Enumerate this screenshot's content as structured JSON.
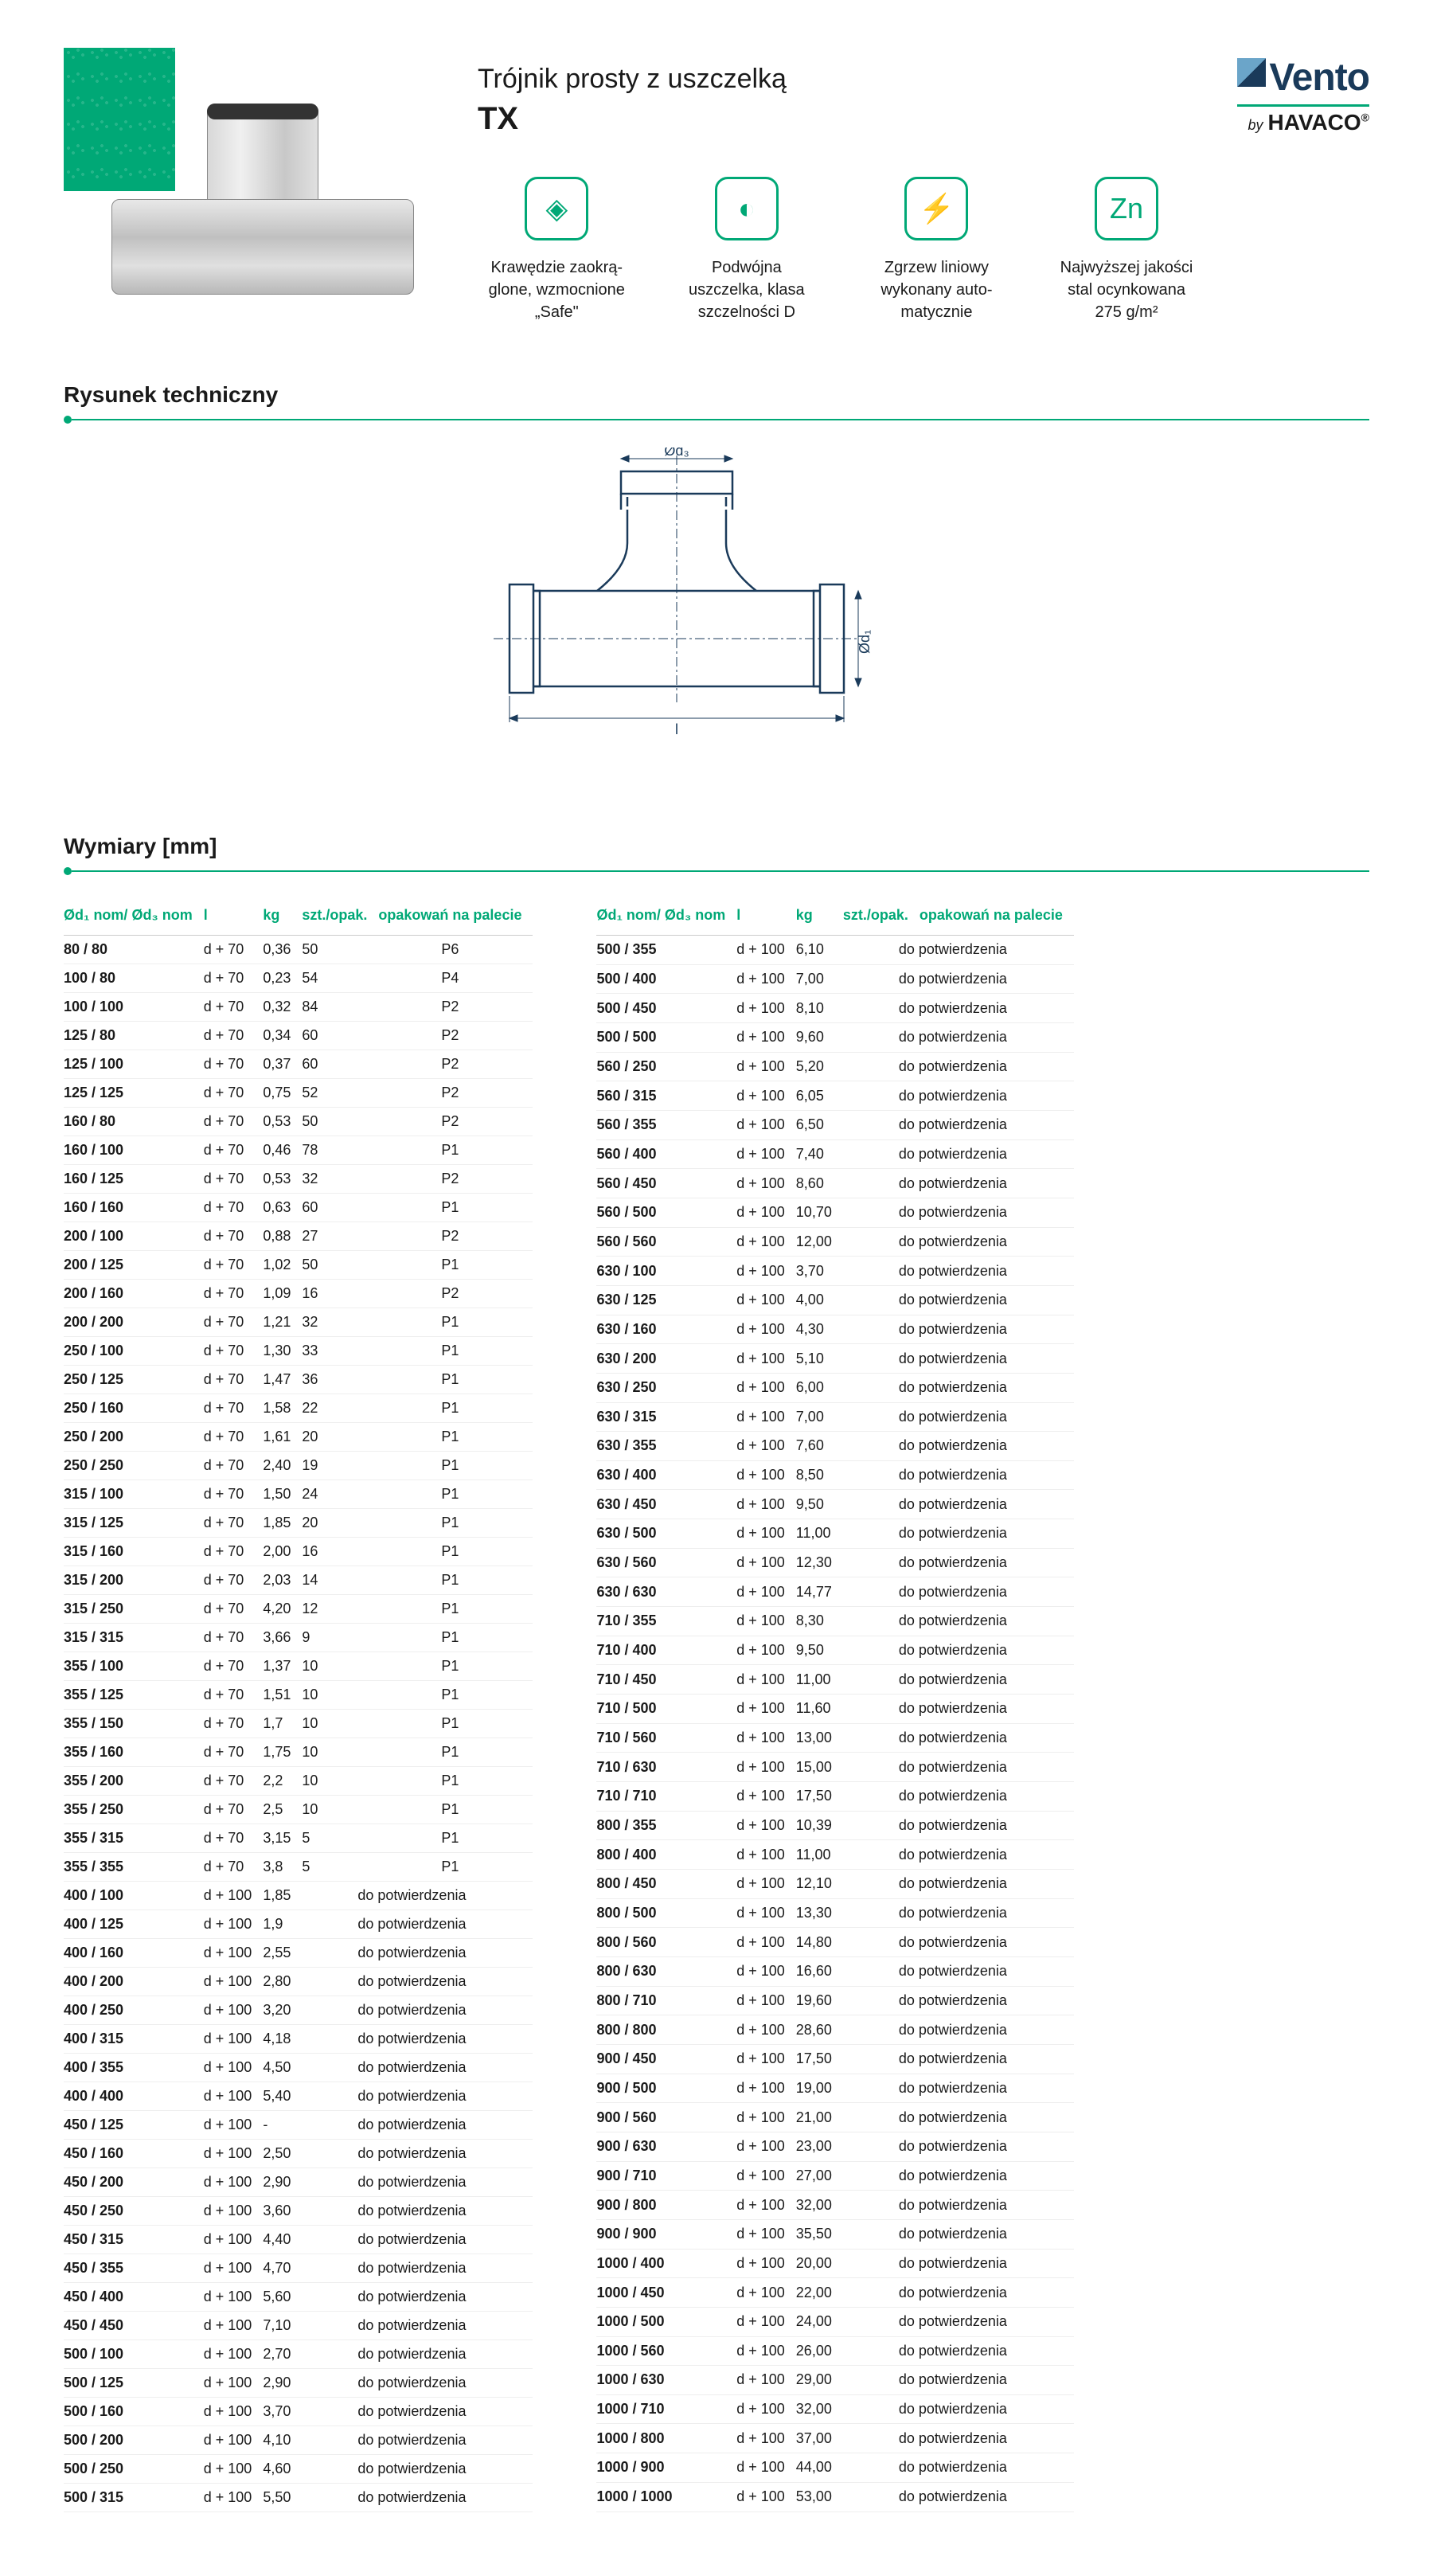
{
  "header": {
    "subtitle": "Trójnik prosty z uszczelką",
    "code": "TX",
    "logo_vento": "Vento",
    "logo_by": "by",
    "logo_havaco": "HAVACO"
  },
  "features": [
    {
      "icon": "◈",
      "text": "Krawędzie zaokrą-\nglone, wzmocnione\n„Safe\""
    },
    {
      "icon": "◐",
      "text": "Podwójna\nuszczelka, klasa\nszczelności D"
    },
    {
      "icon": "⚡",
      "text": "Zgrzew liniowy\nwykonany auto-\nmatycznie"
    },
    {
      "icon": "Zn",
      "text": "Najwyższej jakości\nstal ocynkowana\n275 g/m²"
    }
  ],
  "section1_title": "Rysunek techniczny",
  "section2_title": "Wymiary [mm]",
  "drawing": {
    "d3_label": "Ød₃",
    "d1_label": "Ød₁",
    "l_label": "l"
  },
  "table_headers": [
    "Ød₁ nom/ Ød₃ nom",
    "l",
    "kg",
    "szt./opak.",
    "opakowań na palecie"
  ],
  "confirm_text": "do potwierdzenia",
  "left_rows": [
    [
      "80 / 80",
      "d + 70",
      "0,36",
      "50",
      "P6"
    ],
    [
      "100 / 80",
      "d + 70",
      "0,23",
      "54",
      "P4"
    ],
    [
      "100 / 100",
      "d + 70",
      "0,32",
      "84",
      "P2"
    ],
    [
      "125 / 80",
      "d + 70",
      "0,34",
      "60",
      "P2"
    ],
    [
      "125 / 100",
      "d + 70",
      "0,37",
      "60",
      "P2"
    ],
    [
      "125 / 125",
      "d + 70",
      "0,75",
      "52",
      "P2"
    ],
    [
      "160 / 80",
      "d + 70",
      "0,53",
      "50",
      "P2"
    ],
    [
      "160 / 100",
      "d + 70",
      "0,46",
      "78",
      "P1"
    ],
    [
      "160 / 125",
      "d + 70",
      "0,53",
      "32",
      "P2"
    ],
    [
      "160 / 160",
      "d + 70",
      "0,63",
      "60",
      "P1"
    ],
    [
      "200 / 100",
      "d + 70",
      "0,88",
      "27",
      "P2"
    ],
    [
      "200 / 125",
      "d + 70",
      "1,02",
      "50",
      "P1"
    ],
    [
      "200 / 160",
      "d + 70",
      "1,09",
      "16",
      "P2"
    ],
    [
      "200 / 200",
      "d + 70",
      "1,21",
      "32",
      "P1"
    ],
    [
      "250 / 100",
      "d + 70",
      "1,30",
      "33",
      "P1"
    ],
    [
      "250 / 125",
      "d + 70",
      "1,47",
      "36",
      "P1"
    ],
    [
      "250 / 160",
      "d + 70",
      "1,58",
      "22",
      "P1"
    ],
    [
      "250 / 200",
      "d + 70",
      "1,61",
      "20",
      "P1"
    ],
    [
      "250 / 250",
      "d + 70",
      "2,40",
      "19",
      "P1"
    ],
    [
      "315 / 100",
      "d + 70",
      "1,50",
      "24",
      "P1"
    ],
    [
      "315 / 125",
      "d + 70",
      "1,85",
      "20",
      "P1"
    ],
    [
      "315 / 160",
      "d + 70",
      "2,00",
      "16",
      "P1"
    ],
    [
      "315 / 200",
      "d + 70",
      "2,03",
      "14",
      "P1"
    ],
    [
      "315 / 250",
      "d + 70",
      "4,20",
      "12",
      "P1"
    ],
    [
      "315 / 315",
      "d + 70",
      "3,66",
      "9",
      "P1"
    ],
    [
      "355 / 100",
      "d + 70",
      "1,37",
      "10",
      "P1"
    ],
    [
      "355 / 125",
      "d + 70",
      "1,51",
      "10",
      "P1"
    ],
    [
      "355 / 150",
      "d + 70",
      "1,7",
      "10",
      "P1"
    ],
    [
      "355 / 160",
      "d + 70",
      "1,75",
      "10",
      "P1"
    ],
    [
      "355 / 200",
      "d + 70",
      "2,2",
      "10",
      "P1"
    ],
    [
      "355 / 250",
      "d + 70",
      "2,5",
      "10",
      "P1"
    ],
    [
      "355 / 315",
      "d + 70",
      "3,15",
      "5",
      "P1"
    ],
    [
      "355 / 355",
      "d + 70",
      "3,8",
      "5",
      "P1"
    ],
    [
      "400 / 100",
      "d + 100",
      "1,85",
      "CONFIRM",
      "CONFIRM"
    ],
    [
      "400 / 125",
      "d + 100",
      "1,9",
      "CONFIRM",
      "CONFIRM"
    ],
    [
      "400 / 160",
      "d + 100",
      "2,55",
      "CONFIRM",
      "CONFIRM"
    ],
    [
      "400 / 200",
      "d + 100",
      "2,80",
      "CONFIRM",
      "CONFIRM"
    ],
    [
      "400 / 250",
      "d + 100",
      "3,20",
      "CONFIRM",
      "CONFIRM"
    ],
    [
      "400 / 315",
      "d + 100",
      "4,18",
      "CONFIRM",
      "CONFIRM"
    ],
    [
      "400 / 355",
      "d + 100",
      "4,50",
      "CONFIRM",
      "CONFIRM"
    ],
    [
      "400 / 400",
      "d + 100",
      "5,40",
      "CONFIRM",
      "CONFIRM"
    ],
    [
      "450 / 125",
      "d + 100",
      "-",
      "CONFIRM",
      "CONFIRM"
    ],
    [
      "450 / 160",
      "d + 100",
      "2,50",
      "CONFIRM",
      "CONFIRM"
    ],
    [
      "450 / 200",
      "d + 100",
      "2,90",
      "CONFIRM",
      "CONFIRM"
    ],
    [
      "450 / 250",
      "d + 100",
      "3,60",
      "CONFIRM",
      "CONFIRM"
    ],
    [
      "450 / 315",
      "d + 100",
      "4,40",
      "CONFIRM",
      "CONFIRM"
    ],
    [
      "450 / 355",
      "d + 100",
      "4,70",
      "CONFIRM",
      "CONFIRM"
    ],
    [
      "450 / 400",
      "d + 100",
      "5,60",
      "CONFIRM",
      "CONFIRM"
    ],
    [
      "450 / 450",
      "d + 100",
      "7,10",
      "CONFIRM",
      "CONFIRM"
    ],
    [
      "500 / 100",
      "d + 100",
      "2,70",
      "CONFIRM",
      "CONFIRM"
    ],
    [
      "500 / 125",
      "d + 100",
      "2,90",
      "CONFIRM",
      "CONFIRM"
    ],
    [
      "500 / 160",
      "d + 100",
      "3,70",
      "CONFIRM",
      "CONFIRM"
    ],
    [
      "500 / 200",
      "d + 100",
      "4,10",
      "CONFIRM",
      "CONFIRM"
    ],
    [
      "500 / 250",
      "d + 100",
      "4,60",
      "CONFIRM",
      "CONFIRM"
    ],
    [
      "500 / 315",
      "d + 100",
      "5,50",
      "CONFIRM",
      "CONFIRM"
    ]
  ],
  "right_rows": [
    [
      "500 / 355",
      "d + 100",
      "6,10",
      "CONFIRM",
      "CONFIRM"
    ],
    [
      "500 / 400",
      "d + 100",
      "7,00",
      "CONFIRM",
      "CONFIRM"
    ],
    [
      "500 / 450",
      "d + 100",
      "8,10",
      "CONFIRM",
      "CONFIRM"
    ],
    [
      "500 / 500",
      "d + 100",
      "9,60",
      "CONFIRM",
      "CONFIRM"
    ],
    [
      "560 / 250",
      "d + 100",
      "5,20",
      "CONFIRM",
      "CONFIRM"
    ],
    [
      "560 / 315",
      "d + 100",
      "6,05",
      "CONFIRM",
      "CONFIRM"
    ],
    [
      "560 / 355",
      "d + 100",
      "6,50",
      "CONFIRM",
      "CONFIRM"
    ],
    [
      "560 / 400",
      "d + 100",
      "7,40",
      "CONFIRM",
      "CONFIRM"
    ],
    [
      "560 / 450",
      "d + 100",
      "8,60",
      "CONFIRM",
      "CONFIRM"
    ],
    [
      "560 / 500",
      "d + 100",
      "10,70",
      "CONFIRM",
      "CONFIRM"
    ],
    [
      "560 / 560",
      "d + 100",
      "12,00",
      "CONFIRM",
      "CONFIRM"
    ],
    [
      "630 / 100",
      "d + 100",
      "3,70",
      "CONFIRM",
      "CONFIRM"
    ],
    [
      "630 / 125",
      "d + 100",
      "4,00",
      "CONFIRM",
      "CONFIRM"
    ],
    [
      "630 / 160",
      "d + 100",
      "4,30",
      "CONFIRM",
      "CONFIRM"
    ],
    [
      "630 / 200",
      "d + 100",
      "5,10",
      "CONFIRM",
      "CONFIRM"
    ],
    [
      "630 / 250",
      "d + 100",
      "6,00",
      "CONFIRM",
      "CONFIRM"
    ],
    [
      "630 / 315",
      "d + 100",
      "7,00",
      "CONFIRM",
      "CONFIRM"
    ],
    [
      "630 / 355",
      "d + 100",
      "7,60",
      "CONFIRM",
      "CONFIRM"
    ],
    [
      "630 / 400",
      "d + 100",
      "8,50",
      "CONFIRM",
      "CONFIRM"
    ],
    [
      "630 / 450",
      "d + 100",
      "9,50",
      "CONFIRM",
      "CONFIRM"
    ],
    [
      "630 / 500",
      "d + 100",
      "11,00",
      "CONFIRM",
      "CONFIRM"
    ],
    [
      "630 / 560",
      "d + 100",
      "12,30",
      "CONFIRM",
      "CONFIRM"
    ],
    [
      "630 / 630",
      "d + 100",
      "14,77",
      "CONFIRM",
      "CONFIRM"
    ],
    [
      "710 / 355",
      "d + 100",
      "8,30",
      "CONFIRM",
      "CONFIRM"
    ],
    [
      "710 / 400",
      "d + 100",
      "9,50",
      "CONFIRM",
      "CONFIRM"
    ],
    [
      "710 / 450",
      "d + 100",
      "11,00",
      "CONFIRM",
      "CONFIRM"
    ],
    [
      "710 / 500",
      "d + 100",
      "11,60",
      "CONFIRM",
      "CONFIRM"
    ],
    [
      "710 / 560",
      "d + 100",
      "13,00",
      "CONFIRM",
      "CONFIRM"
    ],
    [
      "710 / 630",
      "d + 100",
      "15,00",
      "CONFIRM",
      "CONFIRM"
    ],
    [
      "710 / 710",
      "d + 100",
      "17,50",
      "CONFIRM",
      "CONFIRM"
    ],
    [
      "800 / 355",
      "d + 100",
      "10,39",
      "CONFIRM",
      "CONFIRM"
    ],
    [
      "800 / 400",
      "d + 100",
      "11,00",
      "CONFIRM",
      "CONFIRM"
    ],
    [
      "800 / 450",
      "d + 100",
      "12,10",
      "CONFIRM",
      "CONFIRM"
    ],
    [
      "800 / 500",
      "d + 100",
      "13,30",
      "CONFIRM",
      "CONFIRM"
    ],
    [
      "800 / 560",
      "d + 100",
      "14,80",
      "CONFIRM",
      "CONFIRM"
    ],
    [
      "800 / 630",
      "d + 100",
      "16,60",
      "CONFIRM",
      "CONFIRM"
    ],
    [
      "800 / 710",
      "d + 100",
      "19,60",
      "CONFIRM",
      "CONFIRM"
    ],
    [
      "800 / 800",
      "d + 100",
      "28,60",
      "CONFIRM",
      "CONFIRM"
    ],
    [
      "900 / 450",
      "d + 100",
      "17,50",
      "CONFIRM",
      "CONFIRM"
    ],
    [
      "900 / 500",
      "d + 100",
      "19,00",
      "CONFIRM",
      "CONFIRM"
    ],
    [
      "900 / 560",
      "d + 100",
      "21,00",
      "CONFIRM",
      "CONFIRM"
    ],
    [
      "900 / 630",
      "d + 100",
      "23,00",
      "CONFIRM",
      "CONFIRM"
    ],
    [
      "900 / 710",
      "d + 100",
      "27,00",
      "CONFIRM",
      "CONFIRM"
    ],
    [
      "900 / 800",
      "d + 100",
      "32,00",
      "CONFIRM",
      "CONFIRM"
    ],
    [
      "900 / 900",
      "d + 100",
      "35,50",
      "CONFIRM",
      "CONFIRM"
    ],
    [
      "1000 / 400",
      "d + 100",
      "20,00",
      "CONFIRM",
      "CONFIRM"
    ],
    [
      "1000 / 450",
      "d + 100",
      "22,00",
      "CONFIRM",
      "CONFIRM"
    ],
    [
      "1000 / 500",
      "d + 100",
      "24,00",
      "CONFIRM",
      "CONFIRM"
    ],
    [
      "1000 / 560",
      "d + 100",
      "26,00",
      "CONFIRM",
      "CONFIRM"
    ],
    [
      "1000 / 630",
      "d + 100",
      "29,00",
      "CONFIRM",
      "CONFIRM"
    ],
    [
      "1000 / 710",
      "d + 100",
      "32,00",
      "CONFIRM",
      "CONFIRM"
    ],
    [
      "1000 / 800",
      "d + 100",
      "37,00",
      "CONFIRM",
      "CONFIRM"
    ],
    [
      "1000 / 900",
      "d + 100",
      "44,00",
      "CONFIRM",
      "CONFIRM"
    ],
    [
      "1000 / 1000",
      "d + 100",
      "53,00",
      "CONFIRM",
      "CONFIRM"
    ]
  ]
}
